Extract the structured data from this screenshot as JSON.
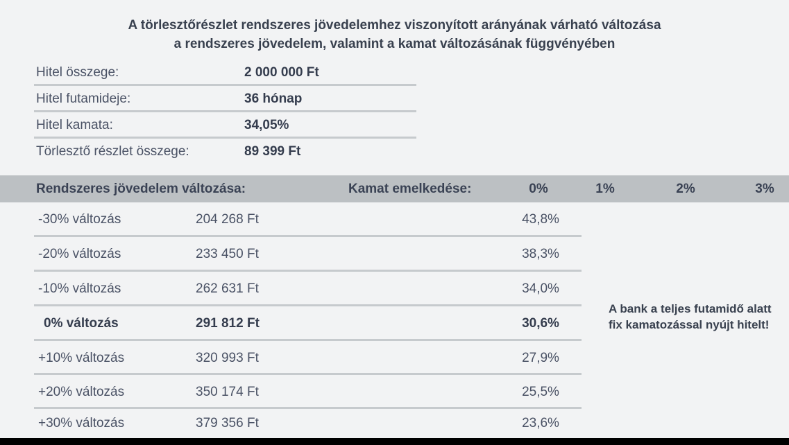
{
  "chart_data": {
    "type": "table",
    "title_lines": [
      "A törlesztőrészlet rendszeres jövedelemhez viszonyított arányának várható változása",
      "a rendszeres jövedelem, valamint a kamat változásának függvényében"
    ],
    "loan_details": [
      {
        "label": "Hitel összege:",
        "value": "2 000 000 Ft"
      },
      {
        "label": "Hitel futamideje:",
        "value": "36 hónap"
      },
      {
        "label": "Hitel kamata:",
        "value": "34,05%"
      },
      {
        "label": "Törlesztő részlet összege:",
        "value": "89 399 Ft"
      }
    ],
    "header": {
      "income_label": "Rendszeres jövedelem változása:",
      "rate_label": "Kamat emelkedése:",
      "rate_columns": [
        "0%",
        "1%",
        "2%",
        "3%"
      ]
    },
    "rows": [
      {
        "change": "-30% változás",
        "installment": "204 268 Ft",
        "ratio_0pct": "43,8%"
      },
      {
        "change": "-20% változás",
        "installment": "233 450 Ft",
        "ratio_0pct": "38,3%"
      },
      {
        "change": "-10% változás",
        "installment": "262 631 Ft",
        "ratio_0pct": "34,0%"
      },
      {
        "change": "0% változás",
        "installment": "291 812 Ft",
        "ratio_0pct": "30,6%"
      },
      {
        "change": "+10% változás",
        "installment": "320 993 Ft",
        "ratio_0pct": "27,9%"
      },
      {
        "change": "+20% változás",
        "installment": "350 174 Ft",
        "ratio_0pct": "25,5%"
      },
      {
        "change": "+30% változás",
        "installment": "379 356 Ft",
        "ratio_0pct": "23,6%"
      }
    ],
    "note": {
      "line1": "A bank a teljes futamidő alatt",
      "line2": "fix kamatozással nyújt hitelt!"
    }
  },
  "colors": {
    "background": "#f2f3f4",
    "header_band": "#bcc0c3",
    "separator": "#c6cacd",
    "text_dark": "#3a4254",
    "text_regular": "#4a5265",
    "bottom_bar": "#000000"
  }
}
